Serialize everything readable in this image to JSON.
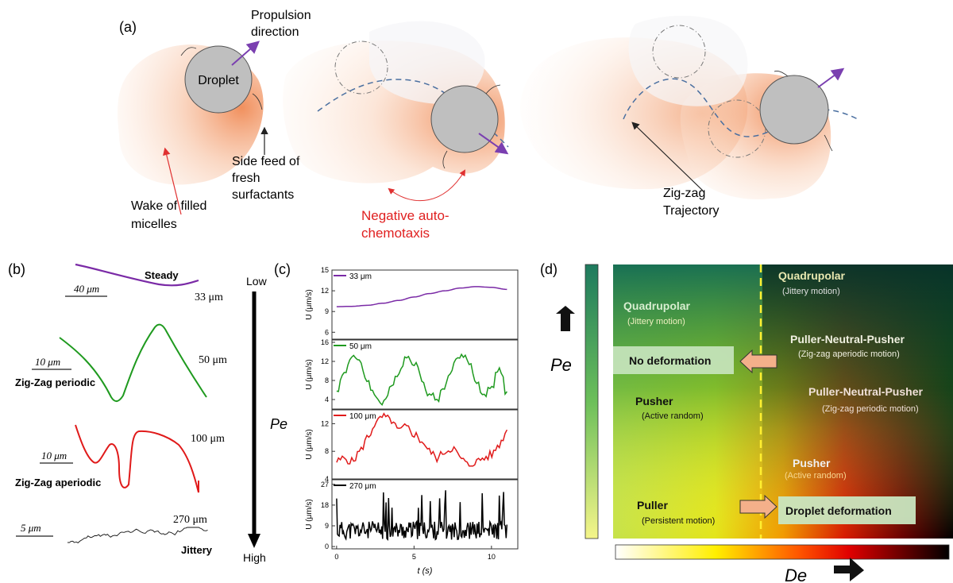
{
  "panel_a": {
    "label": "(a)",
    "droplet": "Droplet",
    "propulsion": [
      "Propulsion",
      "direction"
    ],
    "side_feed": [
      "Side feed of",
      "fresh",
      "surfactants"
    ],
    "wake": [
      "Wake of filled",
      "micelles"
    ],
    "negative": [
      "Negative auto-",
      "chemotaxis"
    ],
    "zigzag": [
      "Zig-zag",
      "Trajectory"
    ]
  },
  "panel_b": {
    "label": "(b)",
    "pe_arrow": {
      "top": "Low",
      "bottom": "High",
      "label": "Pe"
    },
    "traces": [
      {
        "name": "Steady",
        "size": "33 μm",
        "scale": "40 μm"
      },
      {
        "name": "Zig-Zag periodic",
        "size": "50 μm",
        "scale": "10 μm"
      },
      {
        "name": "Zig-Zag aperiodic",
        "size": "100 μm",
        "scale": "10 μm"
      },
      {
        "name": "Jittery",
        "size": "270 μm",
        "scale": "5 μm"
      }
    ]
  },
  "chart_data": [
    {
      "type": "line",
      "legend": "33 μm",
      "ylabel": "U (μm/s)",
      "ylim": [
        5,
        15
      ],
      "yticks": [
        6,
        9,
        12,
        15
      ],
      "color": "#7a2aa6",
      "x": [
        0,
        1,
        2,
        3,
        4,
        5,
        6,
        7,
        8,
        9,
        10,
        11
      ],
      "values": [
        9.7,
        9.75,
        9.9,
        10.2,
        10.6,
        11.1,
        11.6,
        12.0,
        12.4,
        12.6,
        12.5,
        12.2
      ]
    },
    {
      "type": "line",
      "legend": "50 μm",
      "ylabel": "U (μm/s)",
      "ylim": [
        2,
        16.5
      ],
      "yticks": [
        4,
        8,
        12,
        16
      ],
      "color": "#1f9a1f",
      "x": [
        0,
        0.5,
        1,
        1.5,
        2,
        2.5,
        3,
        3.5,
        4,
        4.5,
        5,
        5.5,
        6,
        6.5,
        7,
        7.5,
        8,
        8.5,
        9,
        9.5,
        10,
        10.5,
        11
      ],
      "values": [
        6,
        9.5,
        13.5,
        11.5,
        8,
        4.5,
        3.5,
        6,
        10,
        13,
        12,
        8.5,
        5,
        4,
        7,
        11,
        13.5,
        12,
        8,
        5,
        6.5,
        11,
        5
      ]
    },
    {
      "type": "line",
      "legend": "100 μm",
      "ylabel": "U (μm/s)",
      "ylim": [
        4,
        14
      ],
      "yticks": [
        4,
        8,
        12
      ],
      "color": "#e01a1a",
      "x": [
        0,
        0.5,
        1,
        1.5,
        2,
        2.5,
        3,
        3.5,
        4,
        4.5,
        5,
        5.5,
        6,
        6.5,
        7,
        7.5,
        8,
        8.5,
        9,
        9.5,
        10,
        10.5,
        11
      ],
      "values": [
        6.5,
        7,
        6.5,
        8,
        10,
        12,
        13,
        12.5,
        11,
        11.5,
        10.5,
        9.5,
        8,
        7,
        8,
        8.5,
        7,
        6,
        6.5,
        7,
        7.5,
        9,
        11
      ]
    },
    {
      "type": "line",
      "legend": "270 μm",
      "ylabel": "U (μm/s)",
      "ylim": [
        -1,
        29
      ],
      "yticks": [
        0,
        9,
        18,
        27
      ],
      "color": "#000000",
      "xlabel": "t (s)",
      "xticks": [
        0,
        5,
        10
      ],
      "xlim": [
        -0.3,
        11.7
      ]
    }
  ],
  "panel_d": {
    "label": "(d)",
    "pe": "Pe",
    "de": "De",
    "regions": [
      {
        "title": "Quadrupolar",
        "sub": "(Jittery motion)"
      },
      {
        "title": "Quadrupolar",
        "sub": "(Jittery motion)"
      },
      {
        "title": "Puller-Neutral-Pusher",
        "sub": "(Zig-zag aperiodic motion)"
      },
      {
        "title": "Puller-Neutral-Pusher",
        "sub": "(Zig-zag periodic motion)"
      },
      {
        "title": "Pusher",
        "sub": "(Active random)"
      },
      {
        "title": "Pusher",
        "sub": "(Active random)"
      },
      {
        "title": "Puller",
        "sub": "(Persistent motion)"
      }
    ],
    "box_no_def": "No deformation",
    "box_def": "Droplet deformation"
  }
}
